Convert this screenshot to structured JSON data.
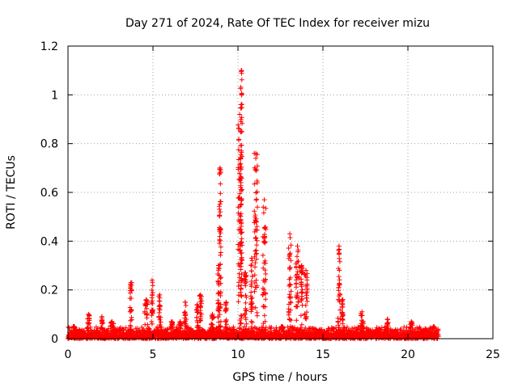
{
  "chart_data": {
    "type": "scatter",
    "title": "Day 271 of 2024, Rate Of TEC Index for receiver mizu",
    "xlabel": "GPS time / hours",
    "ylabel": "ROTI / TECUs",
    "xlim": [
      0,
      25
    ],
    "ylim": [
      0,
      1.2
    ],
    "xticks": [
      0,
      5,
      10,
      15,
      20,
      25
    ],
    "xtick_labels": [
      "0",
      "5",
      "10",
      "15",
      "20",
      "25"
    ],
    "yticks": [
      0,
      0.2,
      0.4,
      0.6,
      0.8,
      1.0,
      1.2
    ],
    "ytick_labels": [
      "0",
      "0.2",
      "0.4",
      "0.6",
      "0.8",
      "1",
      "1.2"
    ],
    "grid": true,
    "marker": "+",
    "color": "#ff0000",
    "baseline_range_hours": [
      0,
      21.8
    ],
    "baseline_max": 0.04,
    "spikes": [
      {
        "t": 0.35,
        "peak": 0.05
      },
      {
        "t": 1.2,
        "peak": 0.1
      },
      {
        "t": 2.0,
        "peak": 0.09
      },
      {
        "t": 2.6,
        "peak": 0.07
      },
      {
        "t": 3.7,
        "peak": 0.23
      },
      {
        "t": 4.6,
        "peak": 0.16
      },
      {
        "t": 4.95,
        "peak": 0.24
      },
      {
        "t": 5.4,
        "peak": 0.18
      },
      {
        "t": 6.1,
        "peak": 0.07
      },
      {
        "t": 6.6,
        "peak": 0.07
      },
      {
        "t": 6.9,
        "peak": 0.15
      },
      {
        "t": 7.6,
        "peak": 0.14
      },
      {
        "t": 7.8,
        "peak": 0.18
      },
      {
        "t": 8.5,
        "peak": 0.1
      },
      {
        "t": 8.85,
        "peak": 0.3
      },
      {
        "t": 8.95,
        "peak": 0.7
      },
      {
        "t": 9.3,
        "peak": 0.15
      },
      {
        "t": 10.1,
        "peak": 0.92
      },
      {
        "t": 10.2,
        "peak": 1.1
      },
      {
        "t": 10.45,
        "peak": 0.27
      },
      {
        "t": 10.8,
        "peak": 0.33
      },
      {
        "t": 11.05,
        "peak": 0.76
      },
      {
        "t": 11.55,
        "peak": 0.57
      },
      {
        "t": 12.6,
        "peak": 0.05
      },
      {
        "t": 13.05,
        "peak": 0.43
      },
      {
        "t": 13.5,
        "peak": 0.38
      },
      {
        "t": 13.75,
        "peak": 0.3
      },
      {
        "t": 14.0,
        "peak": 0.28
      },
      {
        "t": 15.6,
        "peak": 0.04
      },
      {
        "t": 15.95,
        "peak": 0.38
      },
      {
        "t": 16.15,
        "peak": 0.16
      },
      {
        "t": 17.3,
        "peak": 0.11
      },
      {
        "t": 18.8,
        "peak": 0.08
      },
      {
        "t": 20.2,
        "peak": 0.07
      },
      {
        "t": 21.5,
        "peak": 0.05
      }
    ]
  }
}
